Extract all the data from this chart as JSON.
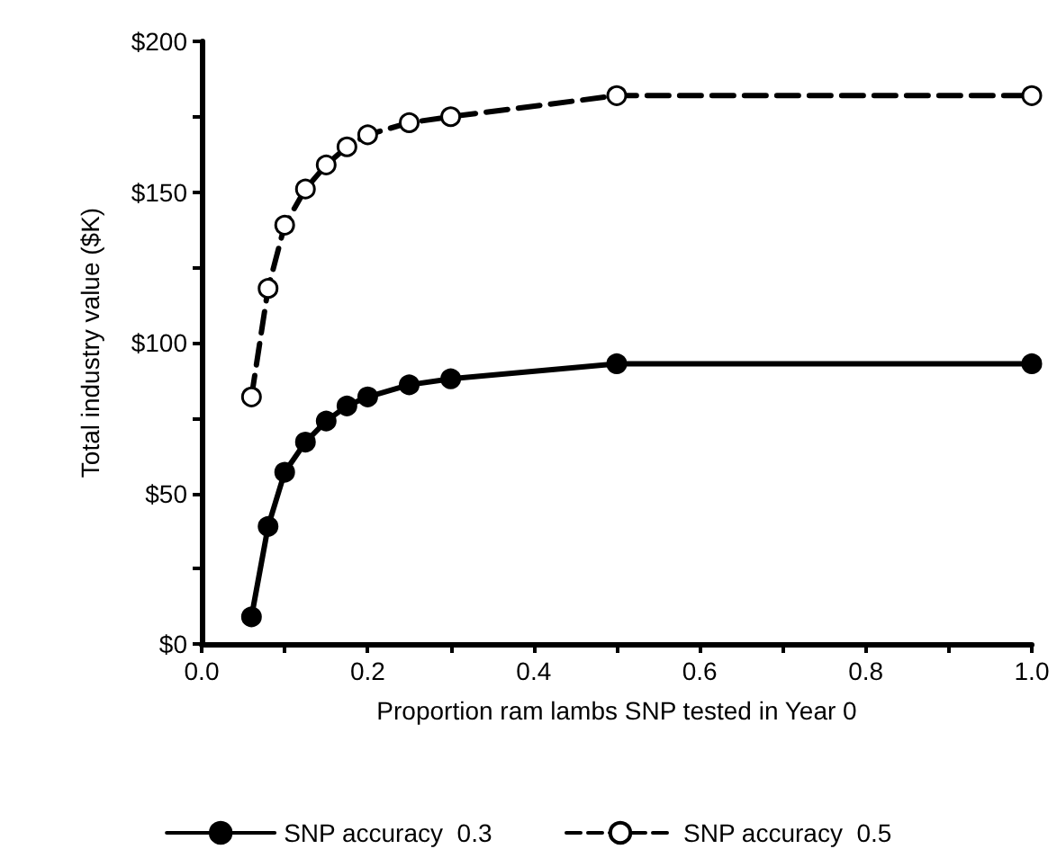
{
  "chart_data": {
    "type": "line",
    "xlabel": "Proportion ram lambs SNP tested in Year 0",
    "ylabel": "Total industry value ($K)",
    "x": [
      0.06,
      0.08,
      0.1,
      0.125,
      0.15,
      0.175,
      0.2,
      0.25,
      0.3,
      0.5,
      1.0
    ],
    "series": [
      {
        "name": "SNP accuracy  0.3",
        "color": "#000000",
        "line_style": "solid",
        "values": [
          9,
          39,
          57,
          67,
          74,
          79,
          82,
          86,
          88,
          93,
          93
        ]
      },
      {
        "name": "SNP accuracy  0.5",
        "color": "#000000",
        "line_style": "dashed",
        "values": [
          82,
          118,
          139,
          151,
          159,
          165,
          169,
          173,
          175,
          182,
          182
        ]
      }
    ],
    "xlim": [
      0,
      1
    ],
    "ylim": [
      0,
      200
    ],
    "xticks": [
      {
        "value": 0,
        "label": "0.0"
      },
      {
        "value": 0.1,
        "label": null
      },
      {
        "value": 0.2,
        "label": "0.2"
      },
      {
        "value": 0.3,
        "label": null
      },
      {
        "value": 0.4,
        "label": "0.4"
      },
      {
        "value": 0.5,
        "label": null
      },
      {
        "value": 0.6,
        "label": "0.6"
      },
      {
        "value": 0.7,
        "label": null
      },
      {
        "value": 0.8,
        "label": "0.8"
      },
      {
        "value": 0.9,
        "label": null
      },
      {
        "value": 1,
        "label": "1.0"
      }
    ],
    "yticks": [
      {
        "value": 0,
        "label": "$0"
      },
      {
        "value": 25,
        "label": null
      },
      {
        "value": 50,
        "label": "$50"
      },
      {
        "value": 75,
        "label": null
      },
      {
        "value": 100,
        "label": "$100"
      },
      {
        "value": 125,
        "label": null
      },
      {
        "value": 150,
        "label": "$150"
      },
      {
        "value": 175,
        "label": null
      },
      {
        "value": 200,
        "label": "$200"
      }
    ],
    "grid": false,
    "legend": "bottom",
    "marker": "circle"
  }
}
